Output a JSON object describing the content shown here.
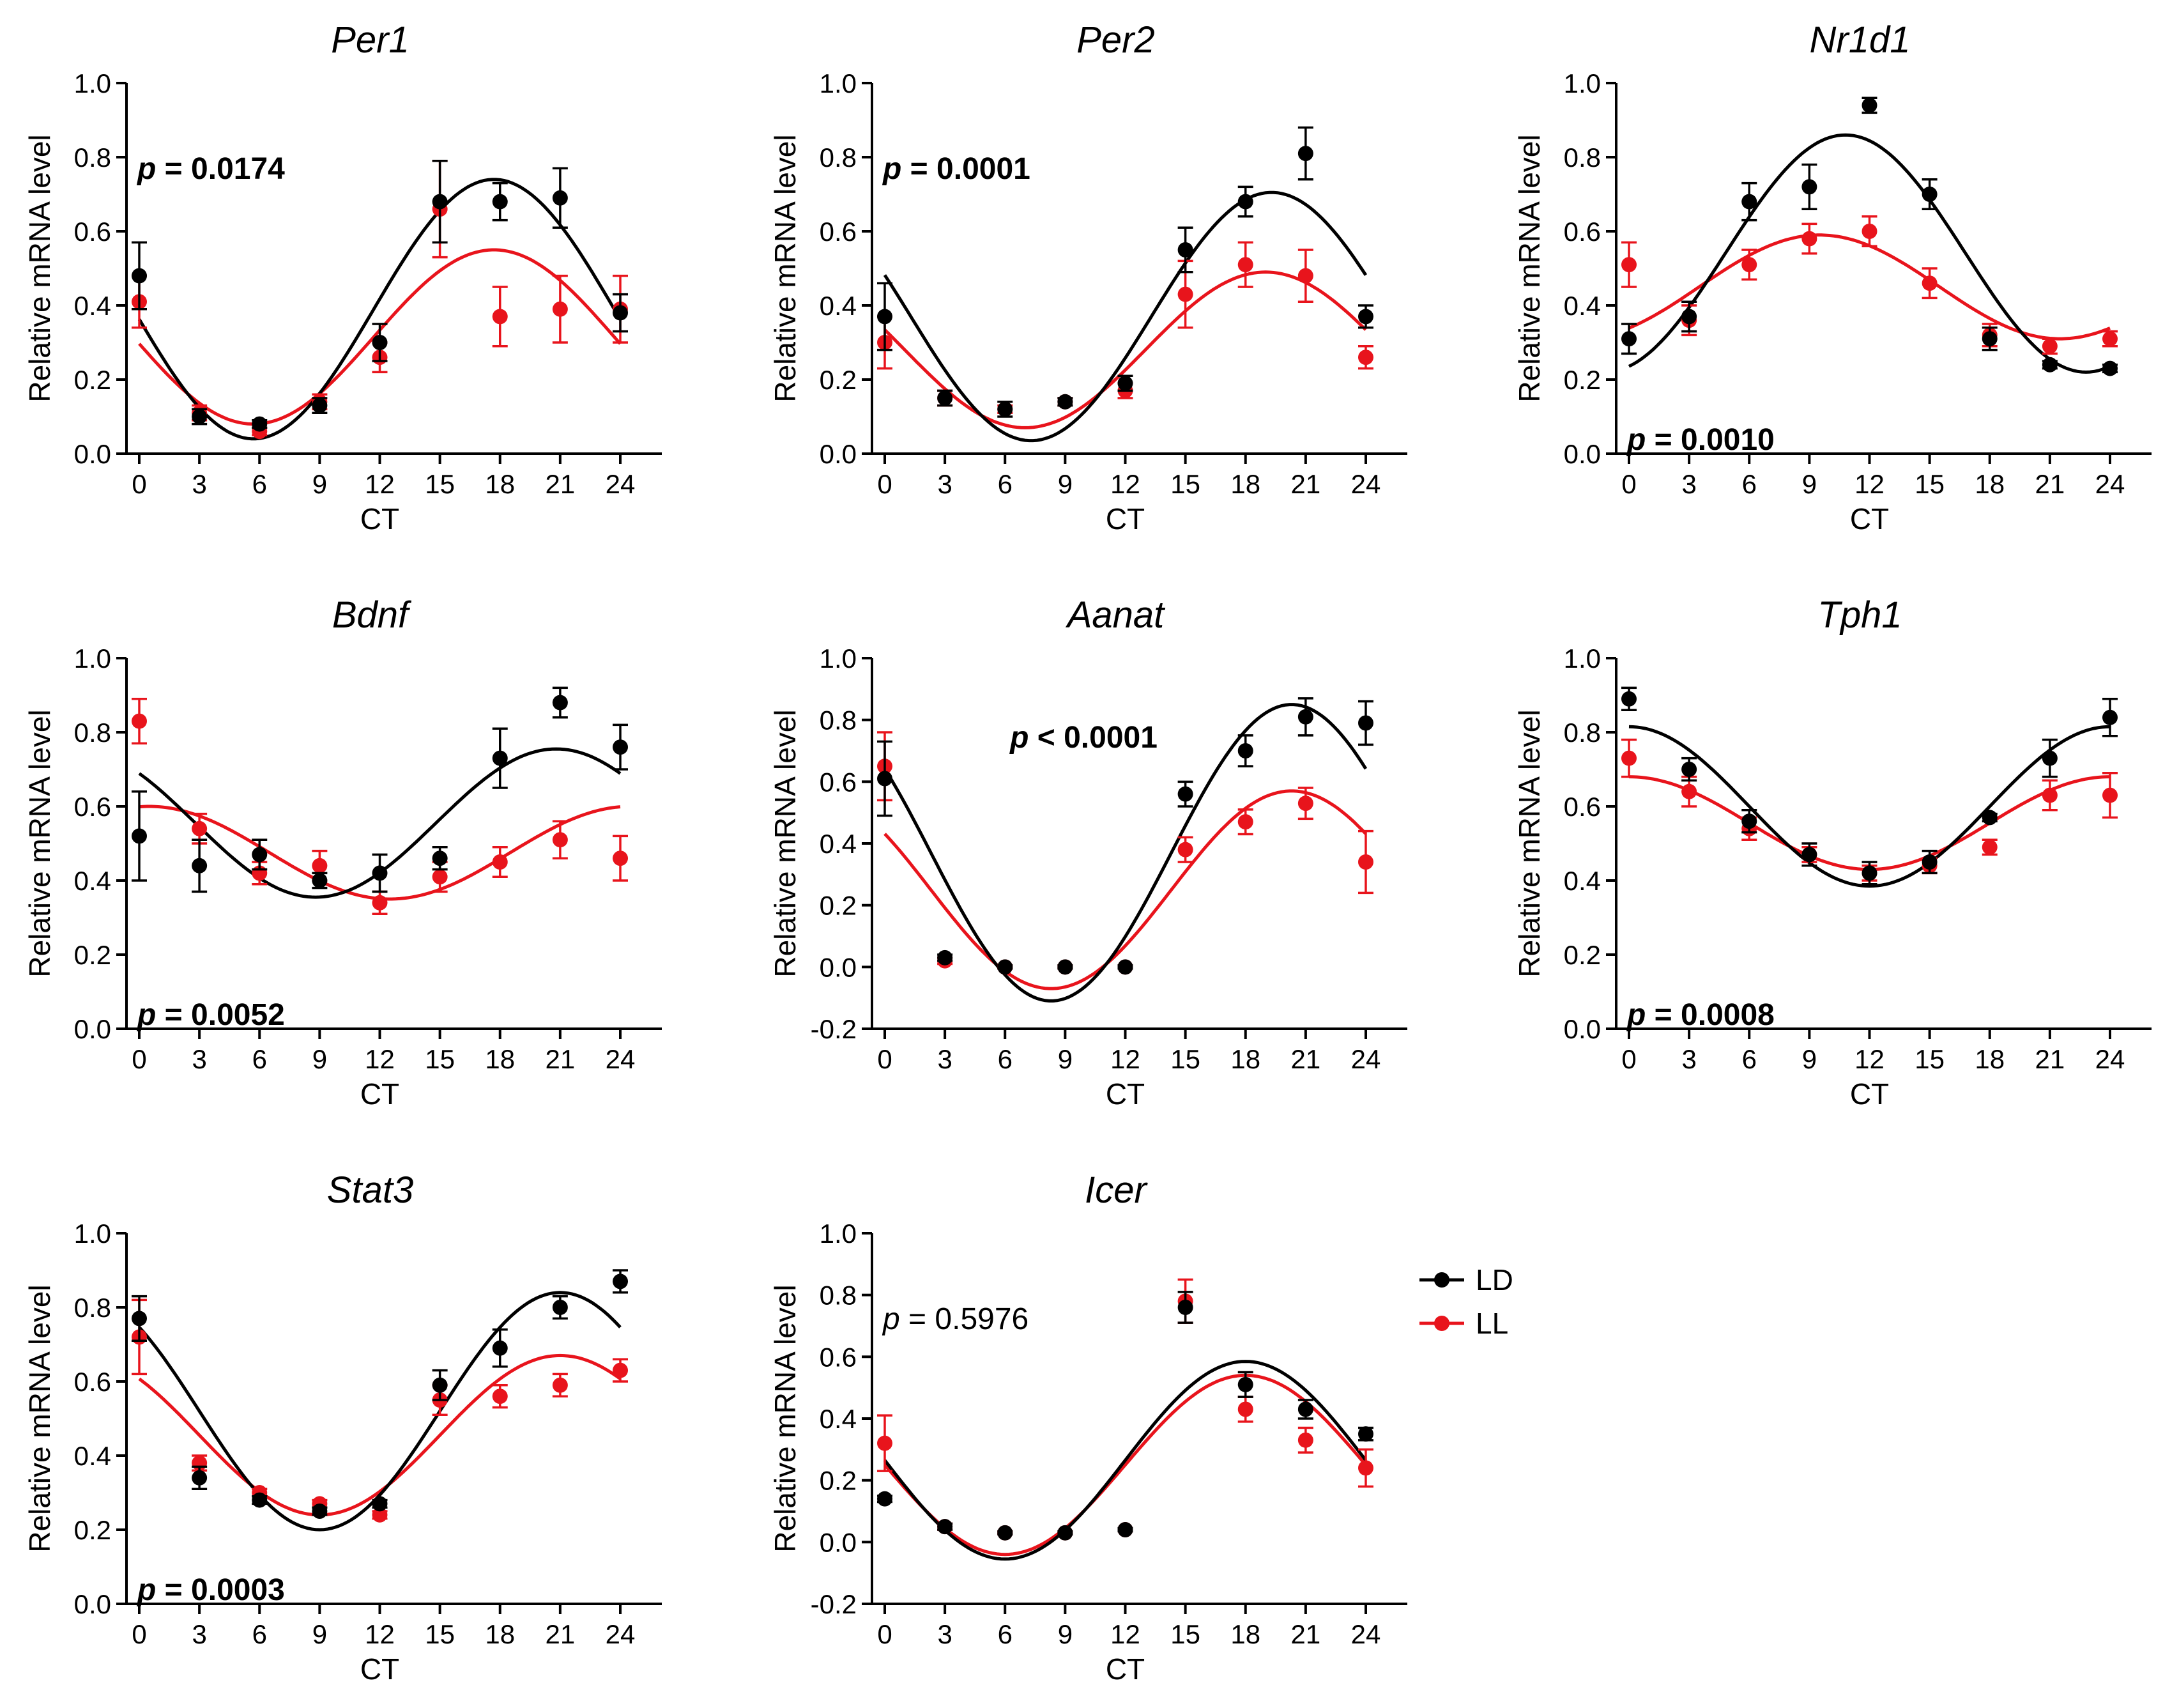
{
  "figure": {
    "colors": {
      "LD": "#000000",
      "LL": "#e8141c"
    },
    "legend": {
      "items": [
        {
          "key": "LD",
          "label": "LD"
        },
        {
          "key": "LL",
          "label": "LL"
        }
      ]
    }
  },
  "chart_data": [
    {
      "type": "scatter",
      "title": "Per1",
      "xlabel": "CT",
      "ylabel": "Relative mRNA level",
      "xticks": [
        0,
        3,
        6,
        9,
        12,
        15,
        18,
        21,
        24
      ],
      "yticks": [
        0.0,
        0.2,
        0.4,
        0.6,
        0.8,
        1.0
      ],
      "ylim": [
        0.0,
        1.0
      ],
      "p_label": "p",
      "p_value_text": "= 0.0174",
      "p_bold": true,
      "p_position": "top-left",
      "series": [
        {
          "name": "LD",
          "x": [
            0,
            3,
            6,
            9,
            12,
            15,
            18,
            21,
            24
          ],
          "y": [
            0.48,
            0.1,
            0.08,
            0.13,
            0.3,
            0.68,
            0.68,
            0.69,
            0.38
          ],
          "err": [
            0.09,
            0.02,
            0.01,
            0.02,
            0.05,
            0.11,
            0.05,
            0.08,
            0.05
          ],
          "fit": {
            "mesor": 0.39,
            "amplitude": 0.35,
            "peak": 17.7
          }
        },
        {
          "name": "LL",
          "x": [
            0,
            3,
            6,
            9,
            12,
            15,
            18,
            21,
            24
          ],
          "y": [
            0.41,
            0.11,
            0.06,
            0.14,
            0.26,
            0.66,
            0.37,
            0.39,
            0.39
          ],
          "err": [
            0.07,
            0.02,
            0.01,
            0.02,
            0.04,
            0.13,
            0.08,
            0.09,
            0.09
          ],
          "fit": {
            "mesor": 0.315,
            "amplitude": 0.235,
            "peak": 17.7
          }
        }
      ]
    },
    {
      "type": "scatter",
      "title": "Per2",
      "xlabel": "CT",
      "ylabel": "Relative mRNA level",
      "xticks": [
        0,
        3,
        6,
        9,
        12,
        15,
        18,
        21,
        24
      ],
      "yticks": [
        0.0,
        0.2,
        0.4,
        0.6,
        0.8,
        1.0
      ],
      "ylim": [
        0.0,
        1.0
      ],
      "p_label": "p",
      "p_value_text": "= 0.0001",
      "p_bold": true,
      "p_position": "top-left",
      "series": [
        {
          "name": "LD",
          "x": [
            0,
            3,
            6,
            9,
            12,
            15,
            18,
            21,
            24
          ],
          "y": [
            0.37,
            0.15,
            0.12,
            0.14,
            0.19,
            0.55,
            0.68,
            0.81,
            0.37
          ],
          "err": [
            0.09,
            0.02,
            0.02,
            0.01,
            0.02,
            0.06,
            0.04,
            0.07,
            0.03
          ],
          "fit": {
            "mesor": 0.37,
            "amplitude": 0.335,
            "peak": 19.3
          }
        },
        {
          "name": "LL",
          "x": [
            0,
            3,
            6,
            9,
            12,
            15,
            18,
            21,
            24
          ],
          "y": [
            0.3,
            0.15,
            0.12,
            0.14,
            0.17,
            0.43,
            0.51,
            0.48,
            0.26
          ],
          "err": [
            0.07,
            0.02,
            0.01,
            0.01,
            0.02,
            0.09,
            0.06,
            0.07,
            0.03
          ],
          "fit": {
            "mesor": 0.28,
            "amplitude": 0.21,
            "peak": 19.0
          }
        }
      ]
    },
    {
      "type": "scatter",
      "title": "Nr1d1",
      "xlabel": "CT",
      "ylabel": "Relative mRNA level",
      "xticks": [
        0,
        3,
        6,
        9,
        12,
        15,
        18,
        21,
        24
      ],
      "yticks": [
        0.0,
        0.2,
        0.4,
        0.6,
        0.8,
        1.0
      ],
      "ylim": [
        0.0,
        1.0
      ],
      "p_label": "p",
      "p_value_text": "= 0.0010",
      "p_bold": true,
      "p_position": "bottom-left",
      "series": [
        {
          "name": "LD",
          "x": [
            0,
            3,
            6,
            9,
            12,
            15,
            18,
            21,
            24
          ],
          "y": [
            0.31,
            0.37,
            0.68,
            0.72,
            0.94,
            0.7,
            0.31,
            0.24,
            0.23
          ],
          "err": [
            0.04,
            0.04,
            0.05,
            0.06,
            0.02,
            0.04,
            0.03,
            0.01,
            0.01
          ],
          "fit": {
            "mesor": 0.54,
            "amplitude": 0.32,
            "peak": 10.8
          }
        },
        {
          "name": "LL",
          "x": [
            0,
            3,
            6,
            9,
            12,
            15,
            18,
            21,
            24
          ],
          "y": [
            0.51,
            0.36,
            0.51,
            0.58,
            0.6,
            0.46,
            0.32,
            0.29,
            0.31
          ],
          "err": [
            0.06,
            0.04,
            0.04,
            0.04,
            0.04,
            0.04,
            0.03,
            0.02,
            0.02
          ],
          "fit": {
            "mesor": 0.45,
            "amplitude": 0.14,
            "peak": 9.5
          }
        }
      ]
    },
    {
      "type": "scatter",
      "title": "Bdnf",
      "xlabel": "CT",
      "ylabel": "Relative mRNA level",
      "xticks": [
        0,
        3,
        6,
        9,
        12,
        15,
        18,
        21,
        24
      ],
      "yticks": [
        0.0,
        0.2,
        0.4,
        0.6,
        0.8,
        1.0
      ],
      "ylim": [
        0.0,
        1.0
      ],
      "p_label": "p",
      "p_value_text": "= 0.0052",
      "p_bold": true,
      "p_position": "bottom-left",
      "series": [
        {
          "name": "LD",
          "x": [
            0,
            3,
            6,
            9,
            12,
            15,
            18,
            21,
            24
          ],
          "y": [
            0.52,
            0.44,
            0.47,
            0.4,
            0.42,
            0.46,
            0.73,
            0.88,
            0.76
          ],
          "err": [
            0.12,
            0.07,
            0.04,
            0.02,
            0.05,
            0.03,
            0.08,
            0.04,
            0.06
          ],
          "fit": {
            "mesor": 0.555,
            "amplitude": 0.2,
            "peak": 20.8
          }
        },
        {
          "name": "LL",
          "x": [
            0,
            3,
            6,
            9,
            12,
            15,
            18,
            21,
            24
          ],
          "y": [
            0.83,
            0.54,
            0.42,
            0.44,
            0.34,
            0.41,
            0.45,
            0.51,
            0.46
          ],
          "err": [
            0.06,
            0.04,
            0.03,
            0.04,
            0.03,
            0.04,
            0.04,
            0.05,
            0.06
          ],
          "fit": {
            "mesor": 0.475,
            "amplitude": 0.125,
            "peak": 0.5
          }
        }
      ]
    },
    {
      "type": "scatter",
      "title": "Aanat",
      "xlabel": "CT",
      "ylabel": "Relative mRNA level",
      "xticks": [
        0,
        3,
        6,
        9,
        12,
        15,
        18,
        21,
        24
      ],
      "yticks": [
        -0.2,
        0.0,
        0.2,
        0.4,
        0.6,
        0.8,
        1.0
      ],
      "ylim": [
        -0.2,
        1.0
      ],
      "p_label": "p",
      "p_value_text": "< 0.0001",
      "p_bold": true,
      "p_position": "top-center",
      "series": [
        {
          "name": "LD",
          "x": [
            0,
            3,
            6,
            9,
            12,
            15,
            18,
            21,
            24
          ],
          "y": [
            0.61,
            0.03,
            0.0,
            0.0,
            0.0,
            0.56,
            0.7,
            0.81,
            0.79
          ],
          "err": [
            0.12,
            0.01,
            0.005,
            0.005,
            0.005,
            0.04,
            0.05,
            0.06,
            0.07
          ],
          "fit": {
            "mesor": 0.37,
            "amplitude": 0.48,
            "peak": 20.3
          }
        },
        {
          "name": "LL",
          "x": [
            0,
            3,
            6,
            9,
            12,
            15,
            18,
            21,
            24
          ],
          "y": [
            0.65,
            0.02,
            0.0,
            0.0,
            0.0,
            0.38,
            0.47,
            0.53,
            0.34
          ],
          "err": [
            0.11,
            0.01,
            0.005,
            0.005,
            0.005,
            0.04,
            0.04,
            0.05,
            0.1
          ],
          "fit": {
            "mesor": 0.25,
            "amplitude": 0.32,
            "peak": 20.3
          }
        }
      ]
    },
    {
      "type": "scatter",
      "title": "Tph1",
      "xlabel": "CT",
      "ylabel": "Relative mRNA level",
      "xticks": [
        0,
        3,
        6,
        9,
        12,
        15,
        18,
        21,
        24
      ],
      "yticks": [
        0.0,
        0.2,
        0.4,
        0.6,
        0.8,
        1.0
      ],
      "ylim": [
        0.0,
        1.0
      ],
      "p_label": "p",
      "p_value_text": "= 0.0008",
      "p_bold": true,
      "p_position": "bottom-left",
      "series": [
        {
          "name": "LD",
          "x": [
            0,
            3,
            6,
            9,
            12,
            15,
            18,
            21,
            24
          ],
          "y": [
            0.89,
            0.7,
            0.56,
            0.47,
            0.42,
            0.45,
            0.57,
            0.73,
            0.84
          ],
          "err": [
            0.03,
            0.03,
            0.03,
            0.03,
            0.03,
            0.03,
            0.01,
            0.05,
            0.05
          ],
          "fit": {
            "mesor": 0.6,
            "amplitude": 0.215,
            "peak": 0.0
          }
        },
        {
          "name": "LL",
          "x": [
            0,
            3,
            6,
            9,
            12,
            15,
            18,
            21,
            24
          ],
          "y": [
            0.73,
            0.64,
            0.54,
            0.47,
            0.42,
            0.44,
            0.49,
            0.63,
            0.63
          ],
          "err": [
            0.05,
            0.04,
            0.03,
            0.02,
            0.02,
            0.02,
            0.02,
            0.04,
            0.06
          ],
          "fit": {
            "mesor": 0.555,
            "amplitude": 0.125,
            "peak": 24.0
          }
        }
      ]
    },
    {
      "type": "scatter",
      "title": "Stat3",
      "xlabel": "CT",
      "ylabel": "Relative mRNA level",
      "xticks": [
        0,
        3,
        6,
        9,
        12,
        15,
        18,
        21,
        24
      ],
      "yticks": [
        0.0,
        0.2,
        0.4,
        0.6,
        0.8,
        1.0
      ],
      "ylim": [
        0.0,
        1.0
      ],
      "p_label": "p",
      "p_value_text": "= 0.0003",
      "p_bold": true,
      "p_position": "bottom-left",
      "series": [
        {
          "name": "LD",
          "x": [
            0,
            3,
            6,
            9,
            12,
            15,
            18,
            21,
            24
          ],
          "y": [
            0.77,
            0.34,
            0.28,
            0.25,
            0.27,
            0.59,
            0.69,
            0.8,
            0.87
          ],
          "err": [
            0.06,
            0.03,
            0.01,
            0.01,
            0.01,
            0.04,
            0.05,
            0.03,
            0.03
          ],
          "fit": {
            "mesor": 0.52,
            "amplitude": 0.32,
            "peak": 21.0
          }
        },
        {
          "name": "LL",
          "x": [
            0,
            3,
            6,
            9,
            12,
            15,
            18,
            21,
            24
          ],
          "y": [
            0.72,
            0.38,
            0.3,
            0.27,
            0.24,
            0.55,
            0.56,
            0.59,
            0.63
          ],
          "err": [
            0.1,
            0.02,
            0.01,
            0.01,
            0.01,
            0.04,
            0.03,
            0.03,
            0.03
          ],
          "fit": {
            "mesor": 0.455,
            "amplitude": 0.215,
            "peak": 21.0
          }
        }
      ]
    },
    {
      "type": "scatter",
      "title": "Icer",
      "xlabel": "CT",
      "ylabel": "Relative mRNA level",
      "xticks": [
        0,
        3,
        6,
        9,
        12,
        15,
        18,
        21,
        24
      ],
      "yticks": [
        -0.2,
        0.0,
        0.2,
        0.4,
        0.6,
        0.8,
        1.0
      ],
      "ylim": [
        -0.2,
        1.0
      ],
      "p_label": "p",
      "p_value_text": "= 0.5976",
      "p_bold": false,
      "p_position": "top-left",
      "series": [
        {
          "name": "LD",
          "x": [
            0,
            3,
            6,
            9,
            12,
            15,
            18,
            21,
            24
          ],
          "y": [
            0.14,
            0.05,
            0.03,
            0.03,
            0.04,
            0.76,
            0.51,
            0.43,
            0.35
          ],
          "err": [
            0.01,
            0.01,
            0.005,
            0.005,
            0.005,
            0.05,
            0.04,
            0.03,
            0.02
          ],
          "fit": {
            "mesor": 0.265,
            "amplitude": 0.32,
            "peak": 18.0
          }
        },
        {
          "name": "LL",
          "x": [
            0,
            3,
            6,
            9,
            12,
            15,
            18,
            21,
            24
          ],
          "y": [
            0.32,
            0.05,
            0.03,
            0.03,
            0.04,
            0.78,
            0.43,
            0.33,
            0.24
          ],
          "err": [
            0.09,
            0.01,
            0.005,
            0.005,
            0.005,
            0.07,
            0.04,
            0.04,
            0.06
          ],
          "fit": {
            "mesor": 0.25,
            "amplitude": 0.29,
            "peak": 18.0
          }
        }
      ]
    }
  ]
}
